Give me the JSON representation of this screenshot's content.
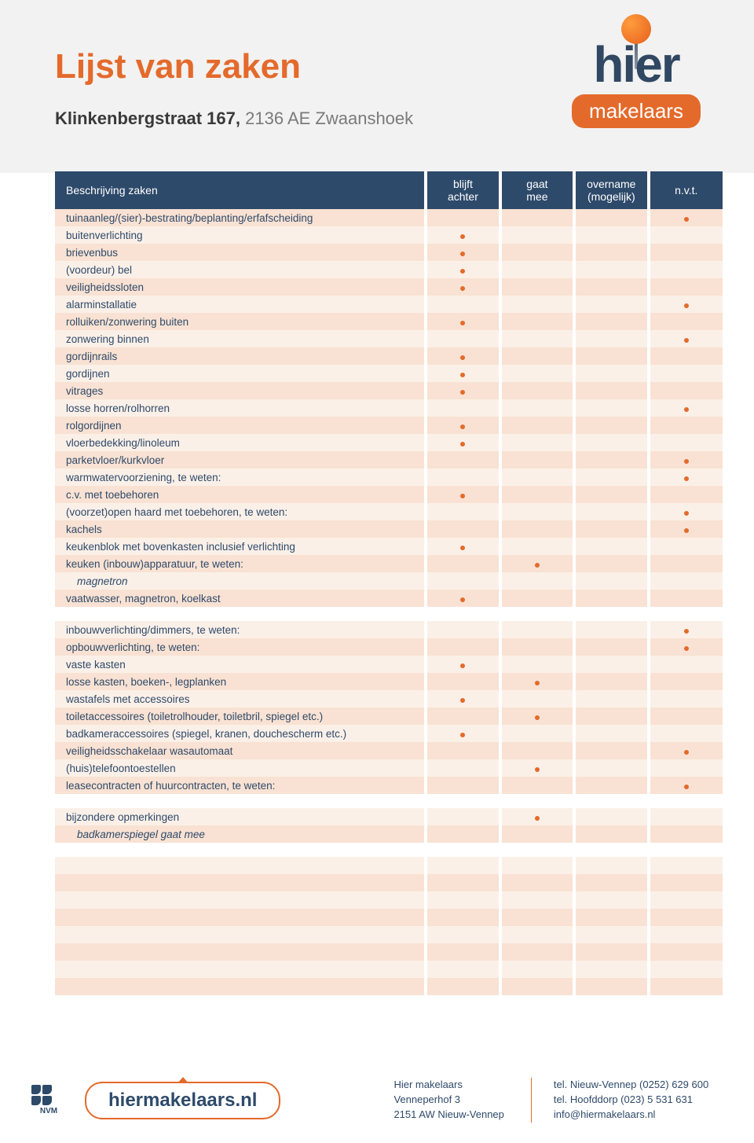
{
  "colors": {
    "accent": "#e46a2b",
    "navy": "#2e4a6a",
    "row_odd": "#f9e2d3",
    "row_even": "#fbf0e8",
    "header_gray": "#f2f2f2"
  },
  "logo": {
    "word": "hier",
    "badge": "makelaars"
  },
  "header": {
    "title": "Lijst van zaken",
    "address_street": "Klinkenbergstraat 167, ",
    "address_zip": "2136 AE Zwaanshoek"
  },
  "table": {
    "columns": {
      "desc": "Beschrijving zaken",
      "c1_line1": "blijft",
      "c1_line2": "achter",
      "c2_line1": "gaat",
      "c2_line2": "mee",
      "c3_line1": "overname",
      "c3_line2": "(mogelijk)",
      "c4": "n.v.t."
    },
    "groups": [
      {
        "rows": [
          {
            "label": "tuinaanleg/(sier)-bestrating/beplanting/erfafscheiding",
            "mark": 4
          },
          {
            "label": "buitenverlichting",
            "mark": 1
          },
          {
            "label": "brievenbus",
            "mark": 1
          },
          {
            "label": "(voordeur) bel",
            "mark": 1
          },
          {
            "label": "veiligheidssloten",
            "mark": 1
          },
          {
            "label": "alarminstallatie",
            "mark": 4
          },
          {
            "label": "rolluiken/zonwering buiten",
            "mark": 1
          },
          {
            "label": "zonwering binnen",
            "mark": 4
          },
          {
            "label": "gordijnrails",
            "mark": 1
          },
          {
            "label": "gordijnen",
            "mark": 1
          },
          {
            "label": "vitrages",
            "mark": 1
          },
          {
            "label": "losse horren/rolhorren",
            "mark": 4
          },
          {
            "label": "rolgordijnen",
            "mark": 1
          },
          {
            "label": "vloerbedekking/linoleum",
            "mark": 1
          },
          {
            "label": "parketvloer/kurkvloer",
            "mark": 4
          },
          {
            "label": "warmwatervoorziening, te weten:",
            "mark": 4
          },
          {
            "label": "c.v. met toebehoren",
            "mark": 1
          },
          {
            "label": "(voorzet)open haard met toebehoren, te weten:",
            "mark": 4
          },
          {
            "label": "kachels",
            "mark": 4
          },
          {
            "label": "keukenblok met bovenkasten inclusief verlichting",
            "mark": 1
          },
          {
            "label": "keuken (inbouw)apparatuur, te weten:",
            "mark": 2
          },
          {
            "label": "magnetron",
            "mark": 0,
            "italic": true,
            "indent": true
          },
          {
            "label": "vaatwasser, magnetron, koelkast",
            "mark": 1
          }
        ]
      },
      {
        "rows": [
          {
            "label": "inbouwverlichting/dimmers, te weten:",
            "mark": 4
          },
          {
            "label": "opbouwverlichting, te weten:",
            "mark": 4
          },
          {
            "label": "vaste kasten",
            "mark": 1
          },
          {
            "label": "losse kasten, boeken-, legplanken",
            "mark": 2
          },
          {
            "label": "wastafels met accessoires",
            "mark": 1
          },
          {
            "label": "toiletaccessoires (toiletrolhouder, toiletbril, spiegel etc.)",
            "mark": 2
          },
          {
            "label": "badkameraccessoires (spiegel, kranen, douchescherm etc.)",
            "mark": 1
          },
          {
            "label": "veiligheidsschakelaar wasautomaat",
            "mark": 4
          },
          {
            "label": "(huis)telefoontoestellen",
            "mark": 2
          },
          {
            "label": "leasecontracten of huurcontracten, te weten:",
            "mark": 4
          }
        ]
      },
      {
        "rows": [
          {
            "label": "bijzondere opmerkingen",
            "mark": 2
          },
          {
            "label": "badkamerspiegel gaat mee",
            "mark": 0,
            "italic": true,
            "indent": true
          }
        ]
      },
      {
        "rows": [
          {
            "label": "",
            "mark": 0
          },
          {
            "label": "",
            "mark": 0
          },
          {
            "label": "",
            "mark": 0
          },
          {
            "label": "",
            "mark": 0
          },
          {
            "label": "",
            "mark": 0
          },
          {
            "label": "",
            "mark": 0
          },
          {
            "label": "",
            "mark": 0
          },
          {
            "label": "",
            "mark": 0
          }
        ]
      }
    ]
  },
  "footer": {
    "nvm": "NVM",
    "url": "hiermakelaars.nl",
    "col1": {
      "l1": "Hier makelaars",
      "l2": "Venneperhof 3",
      "l3": "2151 AW  Nieuw-Vennep"
    },
    "col2": {
      "l1": "tel. Nieuw-Vennep (0252) 629 600",
      "l2": "tel. Hoofddorp (023) 5 531 631",
      "l3": "info@hiermakelaars.nl"
    }
  }
}
